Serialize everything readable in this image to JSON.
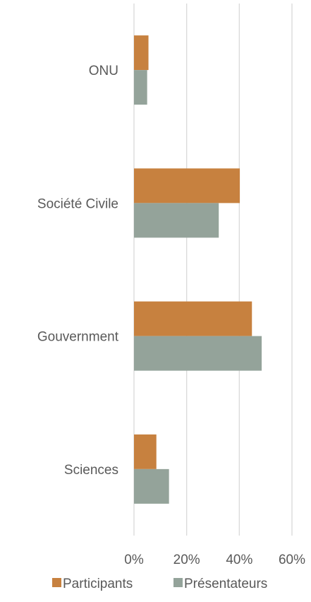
{
  "chart_data": {
    "type": "bar",
    "orientation": "horizontal",
    "categories": [
      "ONU",
      "Société Civile",
      "Gouvernment",
      "Sciences"
    ],
    "series": [
      {
        "name": "Participants",
        "color": "#c7813f",
        "values": [
          5.5,
          40.2,
          44.8,
          8.5
        ]
      },
      {
        "name": "Présentateurs",
        "color": "#94a39a",
        "values": [
          5.0,
          32.2,
          48.5,
          13.3
        ]
      }
    ],
    "xlim": [
      0,
      60
    ],
    "xticks": [
      0,
      20,
      40,
      60
    ],
    "tick_labels": [
      "0%",
      "20%",
      "40%",
      "60%"
    ],
    "grid": true,
    "legend_position": "bottom",
    "gridline_color": "#d9d9d9"
  }
}
